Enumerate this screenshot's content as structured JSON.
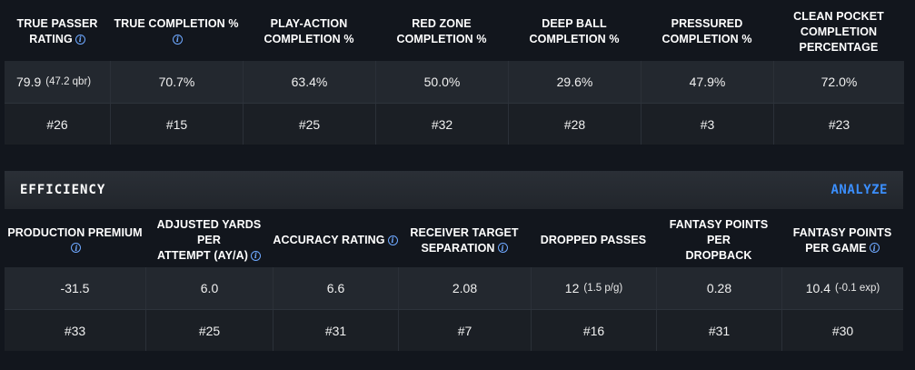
{
  "passing": {
    "columns": [
      {
        "label_lines": [
          "TRUE PASSER",
          "RATING"
        ],
        "info": true,
        "value": "79.9",
        "sub": "(47.2 qbr)",
        "rank": "#26"
      },
      {
        "label_lines": [
          "TRUE COMPLETION %"
        ],
        "info": true,
        "info_newline": true,
        "value": "70.7%",
        "sub": "",
        "rank": "#15"
      },
      {
        "label_lines": [
          "PLAY-ACTION",
          "COMPLETION %"
        ],
        "info": false,
        "value": "63.4%",
        "sub": "",
        "rank": "#25"
      },
      {
        "label_lines": [
          "RED ZONE",
          "COMPLETION %"
        ],
        "info": false,
        "value": "50.0%",
        "sub": "",
        "rank": "#32"
      },
      {
        "label_lines": [
          "DEEP BALL",
          "COMPLETION %"
        ],
        "info": false,
        "value": "29.6%",
        "sub": "",
        "rank": "#28"
      },
      {
        "label_lines": [
          "PRESSURED",
          "COMPLETION %"
        ],
        "info": false,
        "value": "47.9%",
        "sub": "",
        "rank": "#3"
      },
      {
        "label_lines": [
          "CLEAN POCKET",
          "COMPLETION",
          "PERCENTAGE"
        ],
        "info": false,
        "value": "72.0%",
        "sub": "",
        "rank": "#23"
      }
    ]
  },
  "efficiency": {
    "title": "EFFICIENCY",
    "analyze_label": "ANALYZE",
    "columns": [
      {
        "label_lines": [
          "PRODUCTION PREMIUM"
        ],
        "info": true,
        "info_newline": true,
        "value": "-31.5",
        "sub": "",
        "rank": "#33"
      },
      {
        "label_lines": [
          "ADJUSTED YARDS PER",
          "ATTEMPT (AY/A)"
        ],
        "info": true,
        "value": "6.0",
        "sub": "",
        "rank": "#25"
      },
      {
        "label_lines": [
          "ACCURACY RATING"
        ],
        "info": true,
        "value": "6.6",
        "sub": "",
        "rank": "#31"
      },
      {
        "label_lines": [
          "RECEIVER TARGET",
          "SEPARATION"
        ],
        "info": true,
        "value": "2.08",
        "sub": "",
        "rank": "#7"
      },
      {
        "label_lines": [
          "DROPPED PASSES"
        ],
        "info": false,
        "value": "12",
        "sub": "(1.5 p/g)",
        "rank": "#16"
      },
      {
        "label_lines": [
          "FANTASY POINTS PER",
          "DROPBACK"
        ],
        "info": false,
        "value": "0.28",
        "sub": "",
        "rank": "#31"
      },
      {
        "label_lines": [
          "FANTASY POINTS",
          "PER GAME"
        ],
        "info": true,
        "value": "10.4",
        "sub": "(-0.1 exp)",
        "rank": "#30"
      }
    ]
  },
  "colors": {
    "accent": "#3b8fff",
    "info_icon": "#6ea8ff",
    "row_top": "#23282f",
    "row_bottom": "#1b1f25",
    "page_bg": "#12161d"
  }
}
